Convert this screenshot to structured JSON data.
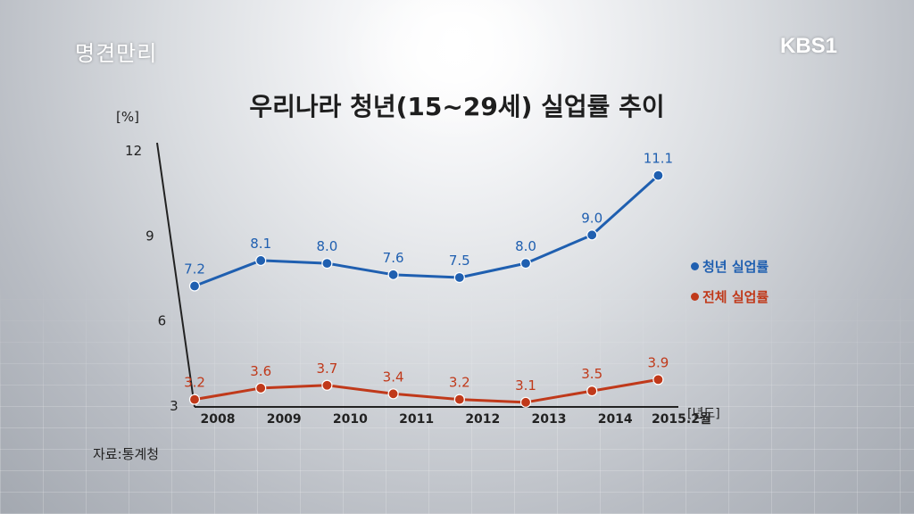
{
  "program_logo": "명견만리",
  "broadcaster_logo": "KBS1",
  "chart_data": {
    "type": "line",
    "title": "우리나라 청년(15~29세) 실업률 추이",
    "ylabel": "[%]",
    "xlabel": "[년도]",
    "categories": [
      "2008",
      "2009",
      "2010",
      "2011",
      "2012",
      "2013",
      "2014",
      "2015.2월"
    ],
    "ylim": [
      3,
      12
    ],
    "yticks": [
      "3",
      "6",
      "9",
      "12"
    ],
    "series": [
      {
        "name": "청년 실업률",
        "color": "#1f5fb0",
        "values": [
          7.2,
          8.1,
          8.0,
          7.6,
          7.5,
          8.0,
          9.0,
          11.1
        ],
        "labels": [
          "7.2",
          "8.1",
          "8.0",
          "7.6",
          "7.5",
          "8.0",
          "9.0",
          "11.1"
        ]
      },
      {
        "name": "전체 실업률",
        "color": "#c0391a",
        "values": [
          3.2,
          3.6,
          3.7,
          3.4,
          3.2,
          3.1,
          3.5,
          3.9
        ],
        "labels": [
          "3.2",
          "3.6",
          "3.7",
          "3.4",
          "3.2",
          "3.1",
          "3.5",
          "3.9"
        ]
      }
    ],
    "legend_placement": "right"
  },
  "source_note": "자료:통계청"
}
